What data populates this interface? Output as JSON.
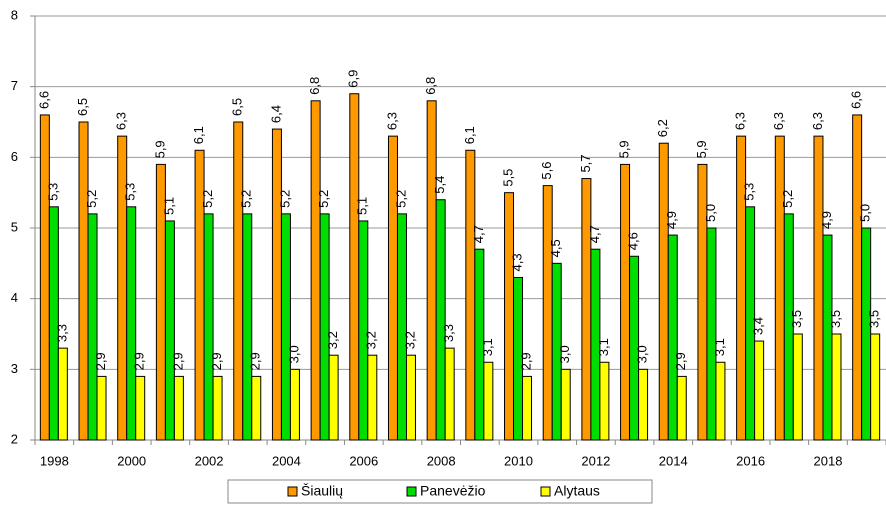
{
  "chart_data": {
    "type": "bar",
    "categories": [
      "1998",
      null,
      "2000",
      null,
      "2002",
      null,
      "2004",
      null,
      "2006",
      null,
      "2008",
      null,
      "2010",
      null,
      "2012",
      null,
      "2014",
      null,
      "2016",
      null,
      "2018",
      null
    ],
    "series": [
      {
        "name": "Šiaulių",
        "color": "#ff9900",
        "values": [
          6.6,
          6.5,
          6.3,
          5.9,
          6.1,
          6.5,
          6.4,
          6.8,
          6.9,
          6.3,
          6.8,
          6.1,
          5.5,
          5.6,
          5.7,
          5.9,
          6.2,
          5.9,
          6.3,
          6.3,
          6.3,
          6.6
        ],
        "value_labels": [
          "6,6",
          "6,5",
          "6,3",
          "5,9",
          "6,1",
          "6,5",
          "6,4",
          "6,8",
          "6,9",
          "6,3",
          "6,8",
          "6,1",
          "5,5",
          "5,6",
          "5,7",
          "5,9",
          "6,2",
          "5,9",
          "6,3",
          "6,3",
          "6,3",
          "6,6"
        ]
      },
      {
        "name": "Panevėžio",
        "color": "#00dd00",
        "values": [
          5.3,
          5.2,
          5.3,
          5.1,
          5.2,
          5.2,
          5.2,
          5.2,
          5.1,
          5.2,
          5.4,
          4.7,
          4.3,
          4.5,
          4.7,
          4.6,
          4.9,
          5.0,
          5.3,
          5.2,
          4.9,
          5.0
        ],
        "value_labels": [
          "5,3",
          "5,2",
          "5,3",
          "5,1",
          "5,2",
          "5,2",
          "5,2",
          "5,2",
          "5,1",
          "5,2",
          "5,4",
          "4,7",
          "4,3",
          "4,5",
          "4,7",
          "4,6",
          "4,9",
          "5,0",
          "5,3",
          "5,2",
          "4,9",
          "5,0"
        ]
      },
      {
        "name": "Alytaus",
        "color": "#ffff00",
        "values": [
          3.3,
          2.9,
          2.9,
          2.9,
          2.9,
          2.9,
          3.0,
          3.2,
          3.2,
          3.2,
          3.3,
          3.1,
          2.9,
          3.0,
          3.1,
          3.0,
          2.9,
          3.1,
          3.4,
          3.5,
          3.5,
          3.5
        ],
        "value_labels": [
          "3,3",
          "2,9",
          "2,9",
          "2,9",
          "2,9",
          "2,9",
          "3,0",
          "3,2",
          "3,2",
          "3,2",
          "3,3",
          "3,1",
          "2,9",
          "3,0",
          "3,1",
          "3,0",
          "2,9",
          "3,1",
          "3,4",
          "3,5",
          "3,5",
          "3,5"
        ]
      }
    ],
    "ylim": [
      2,
      8
    ],
    "yticks": [
      2,
      3,
      4,
      5,
      6,
      7,
      8
    ],
    "grid": true,
    "legend": "bottom"
  }
}
